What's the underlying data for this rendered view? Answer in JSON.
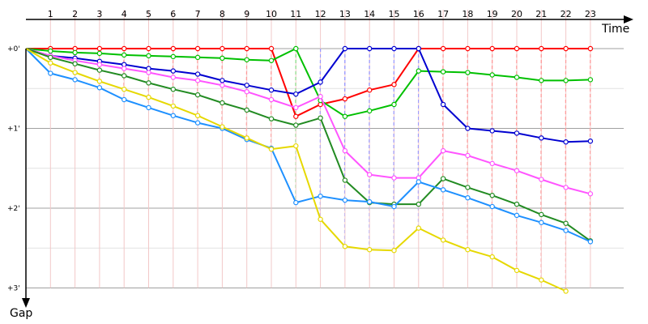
{
  "chart_data": {
    "type": "line",
    "x_axis_label": "Time",
    "y_axis_label": "Gap",
    "x_ticks": [
      "1",
      "2",
      "3",
      "4",
      "5",
      "6",
      "7",
      "8",
      "9",
      "10",
      "11",
      "12",
      "13",
      "14",
      "15",
      "16",
      "17",
      "18",
      "19",
      "20",
      "21",
      "22",
      "23"
    ],
    "y_ticks": [
      "+0'",
      "+1'",
      "+2'",
      "+3'"
    ],
    "y_range_minutes": [
      0,
      3
    ],
    "series": [
      {
        "color": "#ff0000",
        "values": [
          0,
          0,
          0,
          0,
          0,
          0,
          0,
          0,
          0,
          0,
          0,
          0.85,
          0.7,
          0.63,
          0.52,
          0.45,
          0,
          0,
          0,
          0,
          0,
          0,
          0,
          0
        ]
      },
      {
        "color": "#00c000",
        "values": [
          0,
          0.03,
          0.05,
          0.06,
          0.08,
          0.09,
          0.1,
          0.11,
          0.12,
          0.14,
          0.15,
          0,
          0.65,
          0.85,
          0.78,
          0.7,
          0.28,
          0.29,
          0.3,
          0.33,
          0.36,
          0.4,
          0.4,
          0.39
        ]
      },
      {
        "color": "#0000d0",
        "values": [
          0,
          0.09,
          0.12,
          0.16,
          0.2,
          0.25,
          0.28,
          0.32,
          0.4,
          0.46,
          0.52,
          0.57,
          0.42,
          0,
          0,
          0,
          0,
          0.7,
          1.0,
          1.03,
          1.06,
          1.12,
          1.17,
          1.16
        ]
      },
      {
        "color": "#ff55ff",
        "values": [
          0,
          0.09,
          0.15,
          0.2,
          0.25,
          0.3,
          0.36,
          0.4,
          0.46,
          0.54,
          0.64,
          0.74,
          0.6,
          1.28,
          1.58,
          1.62,
          1.62,
          1.28,
          1.34,
          1.44,
          1.53,
          1.64,
          1.74,
          1.82
        ]
      },
      {
        "color": "#228b22",
        "values": [
          0,
          0.11,
          0.19,
          0.27,
          0.34,
          0.43,
          0.51,
          0.58,
          0.68,
          0.77,
          0.88,
          0.96,
          0.87,
          1.65,
          1.93,
          1.95,
          1.95,
          1.63,
          1.74,
          1.84,
          1.95,
          2.08,
          2.19,
          2.41
        ]
      },
      {
        "color": "#1e90ff",
        "values": [
          0,
          0.31,
          0.39,
          0.49,
          0.64,
          0.74,
          0.84,
          0.93,
          1.0,
          1.14,
          1.25,
          1.93,
          1.85,
          1.9,
          1.92,
          1.98,
          1.67,
          1.77,
          1.87,
          1.98,
          2.09,
          2.18,
          2.28,
          2.42
        ]
      },
      {
        "color": "#e6d800",
        "values": [
          0,
          0.18,
          0.3,
          0.41,
          0.51,
          0.61,
          0.72,
          0.84,
          0.98,
          1.12,
          1.26,
          1.22,
          2.14,
          2.48,
          2.52,
          2.53,
          2.25,
          2.4,
          2.52,
          2.61,
          2.78,
          2.9,
          3.04
        ]
      }
    ]
  }
}
